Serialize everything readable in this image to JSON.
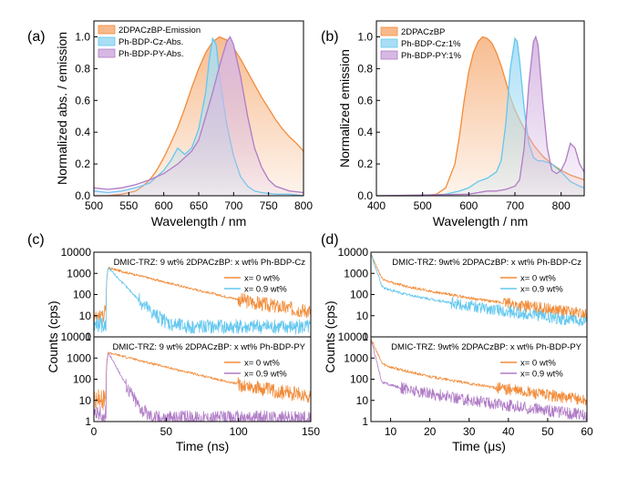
{
  "colors": {
    "orange": "#f28c3a",
    "blue": "#63c7ef",
    "purple": "#b07cc6",
    "orange_fill": "#f7b98a",
    "blue_fill": "#a9def5",
    "purple_fill": "#d7b8e3"
  },
  "chart_data": [
    {
      "panel": "(a)",
      "type": "area",
      "xlabel": "Wavelength / nm",
      "ylabel": "Normalized abs. / emission",
      "xlim": [
        500,
        800
      ],
      "ylim": [
        0,
        1.1
      ],
      "xticks": [
        "500",
        "550",
        "600",
        "650",
        "700",
        "750",
        "800"
      ],
      "yticks": [
        "0.0",
        "0.2",
        "0.4",
        "0.6",
        "0.8",
        "1.0"
      ],
      "legend": [
        "2DPACzBP-Emission",
        "Ph-BDP-Cz-Abs.",
        "Ph-BDP-PY-Abs."
      ],
      "series": [
        {
          "name": "2DPACzBP-Emission",
          "color": "orange",
          "x": [
            500,
            520,
            540,
            560,
            570,
            580,
            590,
            600,
            610,
            620,
            630,
            640,
            650,
            660,
            670,
            680,
            690,
            700,
            710,
            720,
            730,
            740,
            750,
            760,
            770,
            780,
            790,
            800
          ],
          "y": [
            0.0,
            0.0,
            0.01,
            0.03,
            0.06,
            0.1,
            0.16,
            0.24,
            0.33,
            0.43,
            0.55,
            0.68,
            0.8,
            0.9,
            0.97,
            1.0,
            0.98,
            0.93,
            0.86,
            0.78,
            0.7,
            0.62,
            0.55,
            0.48,
            0.42,
            0.37,
            0.33,
            0.28
          ]
        },
        {
          "name": "Ph-BDP-Cz-Abs.",
          "color": "blue",
          "x": [
            500,
            520,
            540,
            560,
            580,
            600,
            610,
            620,
            630,
            640,
            650,
            660,
            665,
            670,
            675,
            680,
            690,
            700,
            710,
            720,
            730,
            740,
            760,
            780,
            800
          ],
          "y": [
            0.03,
            0.02,
            0.03,
            0.05,
            0.08,
            0.16,
            0.22,
            0.3,
            0.26,
            0.3,
            0.42,
            0.65,
            0.85,
            0.99,
            0.95,
            0.75,
            0.45,
            0.25,
            0.12,
            0.06,
            0.03,
            0.02,
            0.01,
            0.01,
            0.0
          ]
        },
        {
          "name": "Ph-BDP-PY-Abs.",
          "color": "purple",
          "x": [
            500,
            520,
            540,
            560,
            580,
            600,
            620,
            640,
            650,
            660,
            670,
            680,
            690,
            695,
            700,
            710,
            720,
            730,
            740,
            750,
            760,
            780,
            800
          ],
          "y": [
            0.05,
            0.04,
            0.05,
            0.07,
            0.1,
            0.14,
            0.2,
            0.28,
            0.35,
            0.5,
            0.65,
            0.82,
            0.97,
            1.0,
            0.95,
            0.75,
            0.5,
            0.3,
            0.18,
            0.1,
            0.06,
            0.03,
            0.02
          ]
        }
      ]
    },
    {
      "panel": "(b)",
      "type": "area",
      "xlabel": "Wavelength / nm",
      "ylabel": "Normalized emission",
      "xlim": [
        400,
        850
      ],
      "ylim": [
        0,
        1.1
      ],
      "xticks": [
        "400",
        "500",
        "600",
        "700",
        "800"
      ],
      "yticks": [
        "0.0",
        "0.2",
        "0.4",
        "0.6",
        "0.8",
        "1.0"
      ],
      "legend": [
        "2DPACzBP",
        "Ph-BDP-Cz:1%",
        "Ph-BDP-PY:1%"
      ],
      "series": [
        {
          "name": "2DPACzBP",
          "color": "orange",
          "x": [
            400,
            500,
            530,
            550,
            570,
            580,
            590,
            600,
            610,
            620,
            630,
            640,
            650,
            660,
            670,
            680,
            690,
            700,
            720,
            740,
            760,
            780,
            800,
            820,
            840,
            850
          ],
          "y": [
            0.0,
            0.0,
            0.01,
            0.05,
            0.2,
            0.38,
            0.6,
            0.78,
            0.9,
            0.97,
            1.0,
            0.99,
            0.96,
            0.9,
            0.82,
            0.72,
            0.62,
            0.54,
            0.42,
            0.32,
            0.25,
            0.2,
            0.16,
            0.13,
            0.11,
            0.1
          ]
        },
        {
          "name": "Ph-BDP-Cz:1%",
          "color": "blue",
          "x": [
            400,
            500,
            550,
            580,
            600,
            620,
            640,
            660,
            670,
            680,
            690,
            700,
            705,
            710,
            720,
            730,
            740,
            750,
            760,
            780,
            800,
            820,
            840,
            850
          ],
          "y": [
            0.0,
            0.0,
            0.01,
            0.03,
            0.05,
            0.09,
            0.11,
            0.15,
            0.22,
            0.45,
            0.8,
            0.99,
            0.97,
            0.85,
            0.55,
            0.33,
            0.24,
            0.22,
            0.22,
            0.2,
            0.15,
            0.09,
            0.06,
            0.05
          ]
        },
        {
          "name": "Ph-BDP-PY:1%",
          "color": "purple",
          "x": [
            400,
            600,
            640,
            660,
            680,
            700,
            710,
            720,
            730,
            740,
            745,
            750,
            760,
            770,
            780,
            790,
            800,
            810,
            820,
            830,
            840,
            850
          ],
          "y": [
            0.0,
            0.01,
            0.03,
            0.03,
            0.04,
            0.06,
            0.1,
            0.3,
            0.7,
            0.97,
            1.0,
            0.95,
            0.6,
            0.3,
            0.16,
            0.14,
            0.16,
            0.22,
            0.33,
            0.3,
            0.2,
            0.15
          ]
        }
      ]
    },
    {
      "panel": "(c)",
      "type": "line",
      "xlabel": "Time (ns)",
      "ylabel": "Counts (cps)",
      "xlim": [
        0,
        150
      ],
      "xticks": [
        "0",
        "50",
        "100",
        "150"
      ],
      "subplots": [
        {
          "annotation": "DMIC-TRZ: 9 wt% 2DPACzBP: x wt% Ph-BDP-Cz",
          "yscale": "log",
          "ylim": [
            1,
            10000
          ],
          "yticks": [
            "1",
            "10",
            "100",
            "1000",
            "10000"
          ],
          "series": [
            {
              "name": "x= 0 wt%",
              "color": "orange",
              "peak_t": 10,
              "peak": 1800,
              "tau": 25,
              "floor": 10
            },
            {
              "name": "x= 0.9 wt%",
              "color": "blue",
              "peak_t": 10,
              "peak": 1800,
              "tau": 6,
              "floor": 3
            }
          ]
        },
        {
          "annotation": "DMIC-TRZ: 9 wt% 2DPACzBP: x wt% Ph-BDP-PY",
          "yscale": "log",
          "ylim": [
            1,
            10000
          ],
          "yticks": [
            "1",
            "10",
            "100",
            "1000",
            "10000"
          ],
          "series": [
            {
              "name": "x= 0 wt%",
              "color": "orange",
              "peak_t": 10,
              "peak": 1800,
              "tau": 25,
              "floor": 10
            },
            {
              "name": "x= 0.9 wt%",
              "color": "purple",
              "peak_t": 10,
              "peak": 1800,
              "tau": 3.5,
              "floor": 1.5
            }
          ]
        }
      ]
    },
    {
      "panel": "(d)",
      "type": "line",
      "xlabel": "Time (μs)",
      "ylabel": "Counts (cps)",
      "xlim": [
        5,
        60
      ],
      "xticks": [
        "10",
        "20",
        "30",
        "40",
        "50",
        "60"
      ],
      "subplots": [
        {
          "annotation": "DMIC-TRZ: 9wt% 2DPACzBP: x wt% Ph-BDP-Cz",
          "yscale": "log",
          "ylim": [
            1,
            10000
          ],
          "yticks": [
            "1",
            "10",
            "100",
            "1000",
            "10000"
          ],
          "series": [
            {
              "name": "x= 0 wt%",
              "color": "orange",
              "start": 8000,
              "knee": 600,
              "end": 12
            },
            {
              "name": "x= 0.9 wt%",
              "color": "blue",
              "start": 8000,
              "knee": 250,
              "end": 5
            }
          ]
        },
        {
          "annotation": "DMIC-TRZ: 9wt% 2DPACzBP: x wt% Ph-BDP-PY",
          "yscale": "log",
          "ylim": [
            1,
            10000
          ],
          "yticks": [
            "1",
            "10",
            "100",
            "1000",
            "10000"
          ],
          "series": [
            {
              "name": "x= 0 wt%",
              "color": "orange",
              "start": 8000,
              "knee": 600,
              "end": 10
            },
            {
              "name": "x= 0.9 wt%",
              "color": "purple",
              "start": 8000,
              "knee": 80,
              "end": 2
            }
          ]
        }
      ]
    }
  ]
}
